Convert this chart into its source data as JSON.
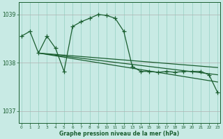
{
  "title": "Graphe pression niveau de la mer (hPa)",
  "background_color": "#c8eae4",
  "plot_bg_color": "#c8eae4",
  "line_color": "#1a5e30",
  "grid_color_v": "#9dd4c8",
  "grid_color_h": "#b0b0b0",
  "ylim": [
    1036.75,
    1039.25
  ],
  "yticks": [
    1037,
    1038,
    1039
  ],
  "xlim": [
    -0.3,
    23.3
  ],
  "xticks": [
    0,
    1,
    2,
    3,
    4,
    5,
    6,
    7,
    8,
    9,
    10,
    11,
    12,
    13,
    14,
    15,
    16,
    17,
    18,
    19,
    20,
    21,
    22,
    23
  ],
  "series1_x": [
    0,
    1,
    2,
    3,
    4,
    5,
    6,
    7,
    8,
    9,
    10,
    11,
    12,
    13,
    14,
    15,
    16,
    17,
    18,
    19,
    20,
    21,
    22,
    23
  ],
  "series1_y": [
    1038.55,
    1038.65,
    1038.2,
    1038.55,
    1038.3,
    1037.82,
    1038.75,
    1038.85,
    1038.92,
    1039.0,
    1038.98,
    1038.92,
    1038.65,
    1037.92,
    1037.82,
    1037.82,
    1037.8,
    1037.82,
    1037.8,
    1037.82,
    1037.82,
    1037.82,
    1037.75,
    1037.38
  ],
  "trendline1_x": [
    2,
    23
  ],
  "trendline1_y": [
    1038.2,
    1037.75
  ],
  "trendline2_x": [
    2,
    23
  ],
  "trendline2_y": [
    1038.2,
    1037.9
  ],
  "trendline3_x": [
    2,
    23
  ],
  "trendline3_y": [
    1038.2,
    1037.6
  ],
  "markersize": 4,
  "linewidth": 0.9
}
